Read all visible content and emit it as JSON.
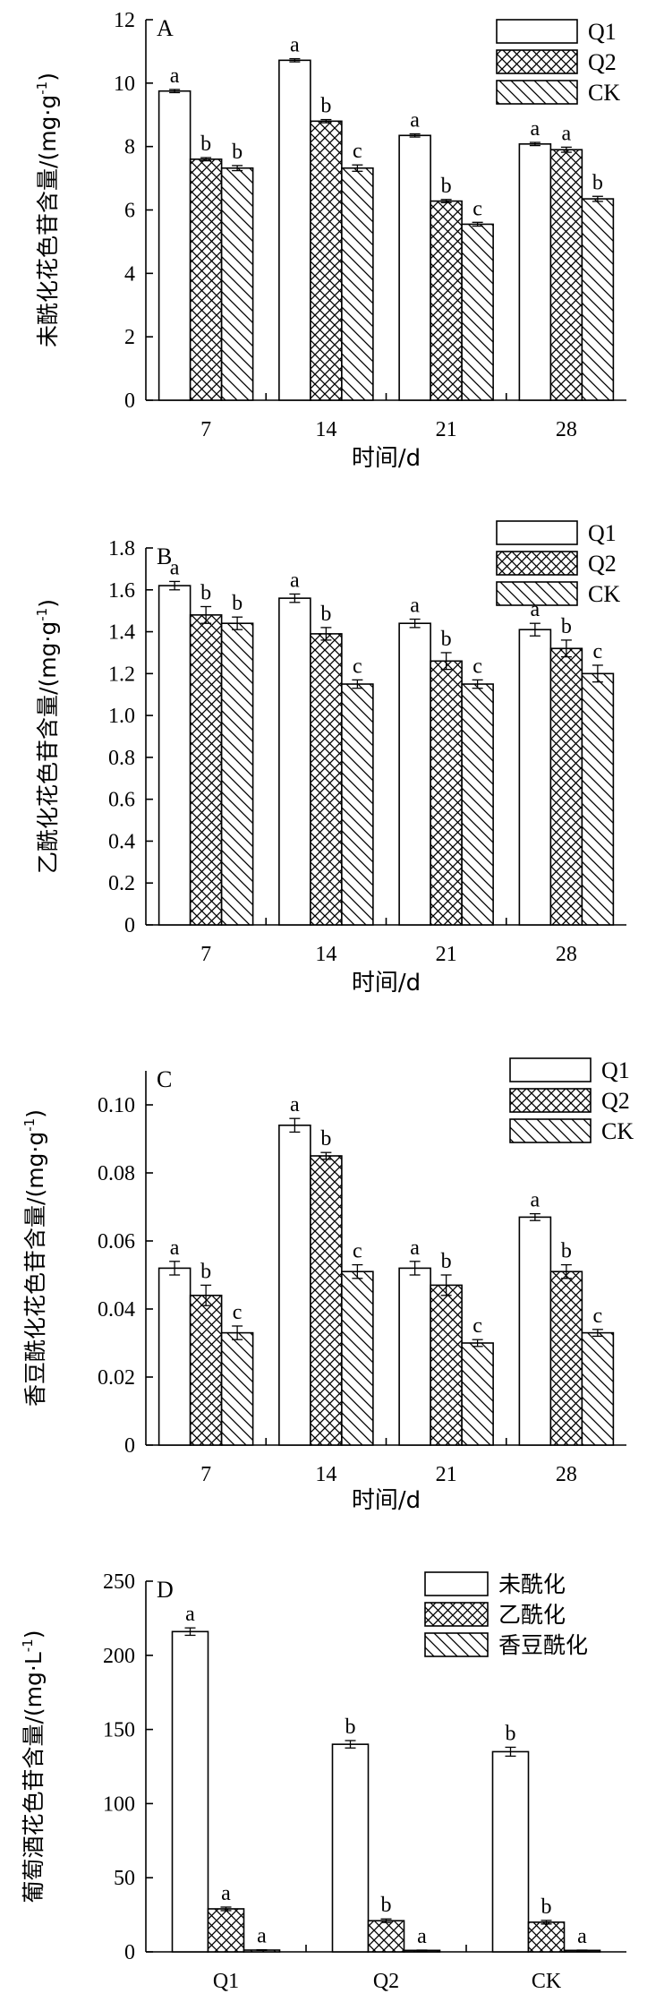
{
  "chart_data": [
    {
      "type": "bar",
      "panel_label": "A",
      "ylabel": "未酰化花色苷含量/(mg·g",
      "ylabel_sup": "-1",
      "ylabel_close": ")",
      "xlabel": "时间/d",
      "categories": [
        "7",
        "14",
        "21",
        "28"
      ],
      "ylim": [
        0,
        12
      ],
      "yticks": [
        0,
        2,
        4,
        6,
        8,
        10,
        12
      ],
      "ytick_labels": [
        "0",
        "2",
        "4",
        "6",
        "8",
        "10",
        "12"
      ],
      "series": [
        {
          "name": "Q1",
          "values": [
            9.75,
            10.72,
            8.35,
            8.08
          ],
          "errors": [
            0.05,
            0.05,
            0.05,
            0.05
          ],
          "letters": [
            "a",
            "a",
            "a",
            "a"
          ]
        },
        {
          "name": "Q2",
          "values": [
            7.6,
            8.8,
            6.28,
            7.9
          ],
          "errors": [
            0.05,
            0.05,
            0.05,
            0.08
          ],
          "letters": [
            "b",
            "b",
            "b",
            "a"
          ]
        },
        {
          "name": "CK",
          "values": [
            7.32,
            7.32,
            5.55,
            6.35
          ],
          "errors": [
            0.08,
            0.1,
            0.06,
            0.08
          ],
          "letters": [
            "b",
            "c",
            "c",
            "b"
          ]
        }
      ]
    },
    {
      "type": "bar",
      "panel_label": "B",
      "ylabel": "乙酰化花色苷含量/(mg·g",
      "ylabel_sup": "-1",
      "ylabel_close": ")",
      "xlabel": "时间/d",
      "categories": [
        "7",
        "14",
        "21",
        "28"
      ],
      "ylim": [
        0,
        1.8
      ],
      "yticks": [
        0,
        0.2,
        0.4,
        0.6,
        0.8,
        1.0,
        1.2,
        1.4,
        1.6,
        1.8
      ],
      "ytick_labels": [
        "0",
        "0.2",
        "0.4",
        "0.6",
        "0.8",
        "1.0",
        "1.2",
        "1.4",
        "1.6",
        "1.8"
      ],
      "series": [
        {
          "name": "Q1",
          "values": [
            1.62,
            1.56,
            1.44,
            1.41
          ],
          "errors": [
            0.02,
            0.02,
            0.02,
            0.03
          ],
          "letters": [
            "a",
            "a",
            "a",
            "a"
          ]
        },
        {
          "name": "Q2",
          "values": [
            1.48,
            1.39,
            1.26,
            1.32
          ],
          "errors": [
            0.04,
            0.03,
            0.04,
            0.04
          ],
          "letters": [
            "b",
            "b",
            "b",
            "b"
          ]
        },
        {
          "name": "CK",
          "values": [
            1.44,
            1.15,
            1.15,
            1.2
          ],
          "errors": [
            0.03,
            0.02,
            0.02,
            0.04
          ],
          "letters": [
            "b",
            "c",
            "c",
            "c"
          ]
        }
      ]
    },
    {
      "type": "bar",
      "panel_label": "C",
      "ylabel": "香豆酰化花色苷含量/(mg·g",
      "ylabel_sup": "-1",
      "ylabel_close": ")",
      "xlabel": "时间/d",
      "categories": [
        "7",
        "14",
        "21",
        "28"
      ],
      "ylim": [
        0,
        0.11
      ],
      "yticks": [
        0,
        0.02,
        0.04,
        0.06,
        0.08,
        0.1
      ],
      "ytick_labels": [
        "0",
        "0.02",
        "0.04",
        "0.06",
        "0.08",
        "0.10"
      ],
      "series": [
        {
          "name": "Q1",
          "values": [
            0.052,
            0.094,
            0.052,
            0.067
          ],
          "errors": [
            0.002,
            0.002,
            0.002,
            0.001
          ],
          "letters": [
            "a",
            "a",
            "a",
            "a"
          ]
        },
        {
          "name": "Q2",
          "values": [
            0.044,
            0.085,
            0.047,
            0.051
          ],
          "errors": [
            0.003,
            0.001,
            0.003,
            0.002
          ],
          "letters": [
            "b",
            "b",
            "b",
            "b"
          ]
        },
        {
          "name": "CK",
          "values": [
            0.033,
            0.051,
            0.03,
            0.033
          ],
          "errors": [
            0.002,
            0.002,
            0.001,
            0.001
          ],
          "letters": [
            "c",
            "c",
            "c",
            "c"
          ]
        }
      ]
    },
    {
      "type": "bar",
      "panel_label": "D",
      "ylabel": "葡萄酒花色苷含量/(mg·L",
      "ylabel_sup": "-1",
      "ylabel_close": ")",
      "xlabel": "",
      "categories": [
        "Q1",
        "Q2",
        "CK"
      ],
      "ylim": [
        0,
        250
      ],
      "yticks": [
        0,
        50,
        100,
        150,
        200,
        250
      ],
      "ytick_labels": [
        "0",
        "50",
        "100",
        "150",
        "200",
        "250"
      ],
      "series": [
        {
          "name": "未酰化",
          "values": [
            216,
            140,
            135
          ],
          "errors": [
            2.5,
            2.5,
            3
          ],
          "letters": [
            "a",
            "b",
            "b"
          ]
        },
        {
          "name": "乙酰化",
          "values": [
            29,
            21,
            20
          ],
          "errors": [
            1.2,
            1.2,
            1.2
          ],
          "letters": [
            "a",
            "b",
            "b"
          ]
        },
        {
          "name": "香豆酰化",
          "values": [
            1.2,
            1.0,
            1.0
          ],
          "errors": [
            0.2,
            0.2,
            0.2
          ],
          "letters": [
            "a",
            "a",
            "a"
          ]
        }
      ]
    }
  ]
}
